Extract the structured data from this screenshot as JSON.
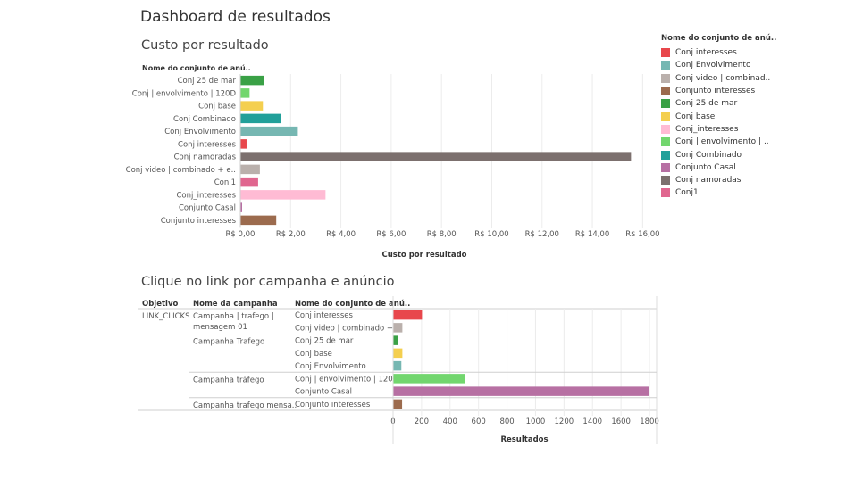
{
  "dashboard": {
    "title": "Dashboard de resultados"
  },
  "chart1": {
    "title": "Custo por resultado",
    "row_header": "Nome do conjunto de anú.."
  },
  "chart2": {
    "title": "Clique no link por campanha e anúncio"
  },
  "legend": {
    "title": "Nome do conjunto de anú..",
    "items": [
      {
        "label": "Conj interesses",
        "color": "#e8474c"
      },
      {
        "label": "Conj Envolvimento",
        "color": "#76b7b2"
      },
      {
        "label": "Conj video | combinad..",
        "color": "#bab0ac"
      },
      {
        "label": "Conjunto interesses",
        "color": "#9c6b4e"
      },
      {
        "label": "Conj 25 de mar",
        "color": "#3aa146"
      },
      {
        "label": "Conj base",
        "color": "#f4cf4f"
      },
      {
        "label": "Conj_interesses",
        "color": "#ffbbd4"
      },
      {
        "label": "Conj | envolvimento | ..",
        "color": "#72d66e"
      },
      {
        "label": "Conj Combinado",
        "color": "#21a09a"
      },
      {
        "label": "Conjunto Casal",
        "color": "#b770a3"
      },
      {
        "label": "Conj namoradas",
        "color": "#7c706e"
      },
      {
        "label": "Conj1",
        "color": "#e0668f"
      }
    ]
  },
  "chart_data": [
    {
      "type": "bar",
      "orientation": "horizontal",
      "title": "Custo por resultado",
      "xlabel": "Custo por resultado",
      "ylabel": "Nome do conjunto de anú..",
      "xlim": [
        0,
        16.2
      ],
      "x_ticks": [
        0,
        2,
        4,
        6,
        8,
        10,
        12,
        14,
        16
      ],
      "x_tick_labels": [
        "R$ 0,00",
        "R$ 2,00",
        "R$ 4,00",
        "R$ 6,00",
        "R$ 8,00",
        "R$ 10,00",
        "R$ 12,00",
        "R$ 14,00",
        "R$ 16,00"
      ],
      "grid": true,
      "categories": [
        "Conj 25 de mar",
        "Conj | envolvimento | 120D",
        "Conj base",
        "Conj Combinado",
        "Conj Envolvimento",
        "Conj interesses",
        "Conj namoradas",
        "Conj video | combinado + e..",
        "Conj1",
        "Conj_interesses",
        "Conjunto Casal",
        "Conjunto interesses"
      ],
      "values": [
        0.91,
        0.35,
        0.88,
        1.59,
        2.27,
        0.23,
        15.52,
        0.76,
        0.69,
        3.37,
        0.05,
        1.41
      ],
      "colors": [
        "#3aa146",
        "#72d66e",
        "#f4cf4f",
        "#21a09a",
        "#76b7b2",
        "#e8474c",
        "#7c706e",
        "#bab0ac",
        "#e0668f",
        "#ffbbd4",
        "#b770a3",
        "#9c6b4e"
      ]
    },
    {
      "type": "bar",
      "orientation": "horizontal",
      "title": "Clique no link por campanha e anúncio",
      "xlabel": "Resultados",
      "xlim": [
        0,
        1850
      ],
      "x_ticks": [
        0,
        200,
        400,
        600,
        800,
        1000,
        1200,
        1400,
        1600,
        1800
      ],
      "grid": true,
      "column_headers": [
        "Objetivo",
        "Nome da campanha",
        "Nome do conjunto de anú.."
      ],
      "objetivo": "LINK_CLICKS",
      "groups": [
        {
          "campaign": [
            "Campanha | trafego |",
            "mensagem 01"
          ],
          "rows": 2
        },
        {
          "campaign": [
            "Campanha Trafego"
          ],
          "rows": 3
        },
        {
          "campaign": [
            "Campanha tráfego"
          ],
          "rows": 2
        },
        {
          "campaign": [
            "Campanha trafego mensa.."
          ],
          "rows": 1
        }
      ],
      "categories": [
        "Conj interesses",
        "Conj video | combinado + ..",
        "Conj 25 de mar",
        "Conj base",
        "Conj Envolvimento",
        "Conj | envolvimento | 120D",
        "Conjunto Casal",
        "Conjunto interesses"
      ],
      "values": [
        200,
        62,
        30,
        62,
        55,
        500,
        1795,
        60
      ],
      "colors": [
        "#e8474c",
        "#bab0ac",
        "#3aa146",
        "#f4cf4f",
        "#76b7b2",
        "#72d66e",
        "#b770a3",
        "#9c6b4e"
      ]
    }
  ]
}
